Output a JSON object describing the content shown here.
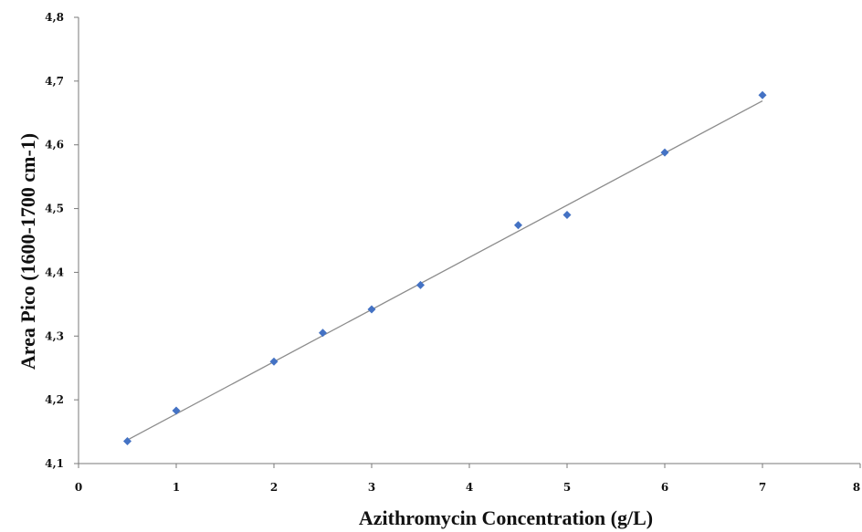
{
  "chart_data": {
    "type": "scatter",
    "title": "",
    "xlabel": "Azithromycin Concentration (g/L)",
    "ylabel": "Area Pico (1600-1700 cm-1)",
    "xlim": [
      0,
      8
    ],
    "ylim": [
      4.1,
      4.8
    ],
    "x_ticks": [
      "0",
      "1",
      "2",
      "3",
      "4",
      "5",
      "6",
      "7",
      "8"
    ],
    "y_ticks": [
      "4,1",
      "4,2",
      "4,3",
      "4,4",
      "4,5",
      "4,6",
      "4,7",
      "4,8"
    ],
    "grid": false,
    "legend": "none",
    "marker_color": "#4472C4",
    "line_color": "#8c8c8c",
    "series": [
      {
        "x": [
          0.5,
          1,
          2,
          2.5,
          3,
          3.5,
          4.5,
          5,
          6,
          7
        ],
        "y": [
          4.135,
          4.183,
          4.26,
          4.305,
          4.342,
          4.38,
          4.474,
          4.49,
          4.588,
          4.678
        ]
      }
    ],
    "trendline": {
      "type": "linear",
      "x": [
        0.5,
        7
      ],
      "y": [
        4.137,
        4.669
      ]
    }
  }
}
